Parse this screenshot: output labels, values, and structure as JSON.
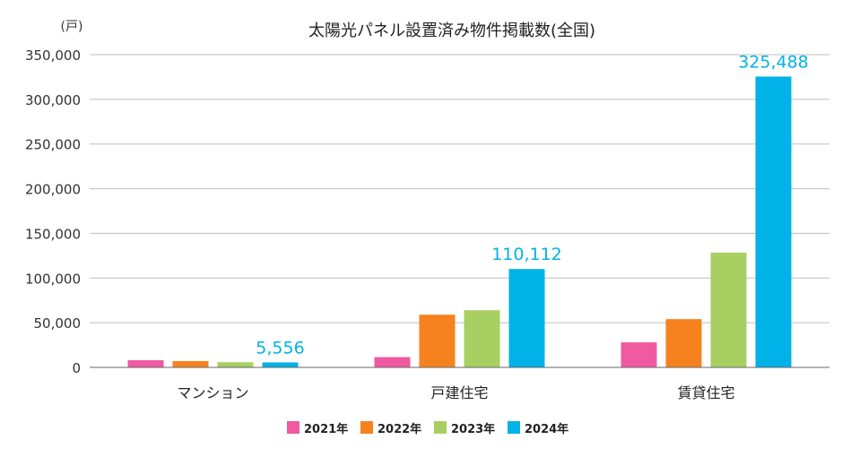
{
  "chart_data": {
    "type": "bar",
    "title": "太陽光パネル設置済み物件掲載数(全国)",
    "unit_label": "(戸)",
    "categories": [
      "マンション",
      "戸建住宅",
      "賃貸住宅"
    ],
    "series": [
      {
        "name": "2021年",
        "color": "#ef5aa1",
        "values": [
          8000,
          11500,
          28000
        ]
      },
      {
        "name": "2022年",
        "color": "#f5821f",
        "values": [
          7000,
          59000,
          54000
        ]
      },
      {
        "name": "2023年",
        "color": "#a8cf62",
        "values": [
          5800,
          64000,
          128500
        ]
      },
      {
        "name": "2024年",
        "color": "#00b2e7",
        "values": [
          5556,
          110112,
          325488
        ]
      }
    ],
    "data_labels": [
      {
        "series": 3,
        "category": 0,
        "text": "5,556"
      },
      {
        "series": 3,
        "category": 1,
        "text": "110,112"
      },
      {
        "series": 3,
        "category": 2,
        "text": "325,488"
      }
    ],
    "ylim": [
      0,
      350000
    ],
    "yticks": [
      0,
      50000,
      100000,
      150000,
      200000,
      250000,
      300000,
      350000
    ],
    "ytick_labels": [
      "0",
      "50,000",
      "100,000",
      "150,000",
      "200,000",
      "250,000",
      "300,000",
      "350,000"
    ],
    "grid": true,
    "legend_position": "bottom-center"
  }
}
